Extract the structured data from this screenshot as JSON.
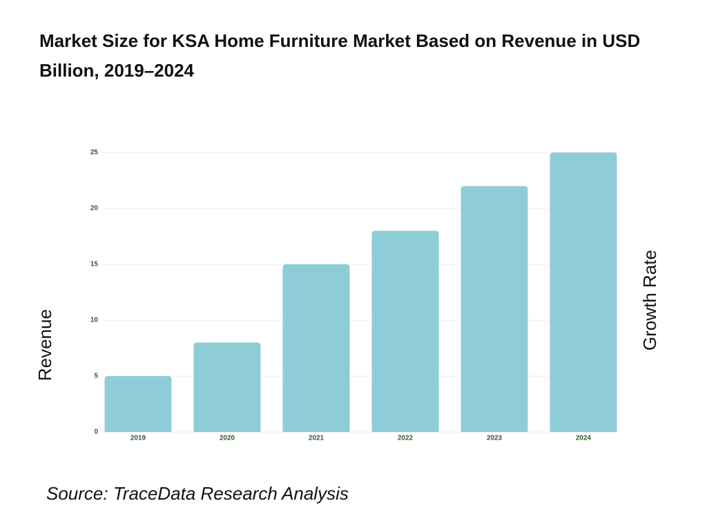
{
  "chart_data": {
    "type": "bar",
    "title": "Market Size for KSA Home Furniture Market Based on Revenue in USD Billion, 2019–2024",
    "y_label": "Revenue",
    "y2_label": "Growth Rate",
    "source": "Source: TraceData Research Analysis",
    "categories": [
      "2019",
      "2020",
      "2021",
      "2022",
      "2023",
      "2024"
    ],
    "values": [
      5,
      8,
      15,
      18,
      22,
      25
    ],
    "color": "#8ecdd8",
    "ylim": [
      0,
      25
    ],
    "yticks": [
      0,
      5,
      10,
      15,
      20,
      25
    ],
    "grid": true
  }
}
